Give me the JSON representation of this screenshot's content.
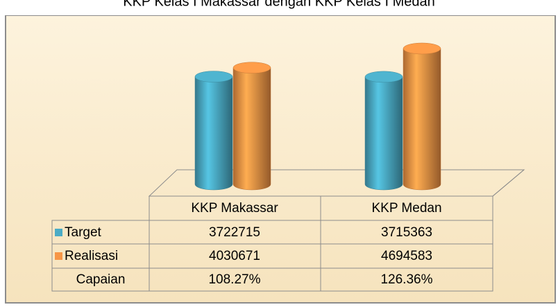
{
  "chart_data": {
    "type": "bar3d",
    "title": "KKP Kelas I Makassar dengan KKP Kelas I Medan",
    "categories": [
      "KKP Makassar",
      "KKP Medan"
    ],
    "series": [
      {
        "name": "Target",
        "color": "#4bacc6",
        "values": [
          3722715,
          3715363
        ]
      },
      {
        "name": "Realisasi",
        "color": "#f79646",
        "values": [
          4030671,
          4694583
        ]
      }
    ],
    "table_row": {
      "name": "Capaian",
      "values": [
        108.27,
        126.36
      ],
      "value_labels": [
        "108.27%",
        "126.36%"
      ]
    },
    "legend": "table"
  }
}
